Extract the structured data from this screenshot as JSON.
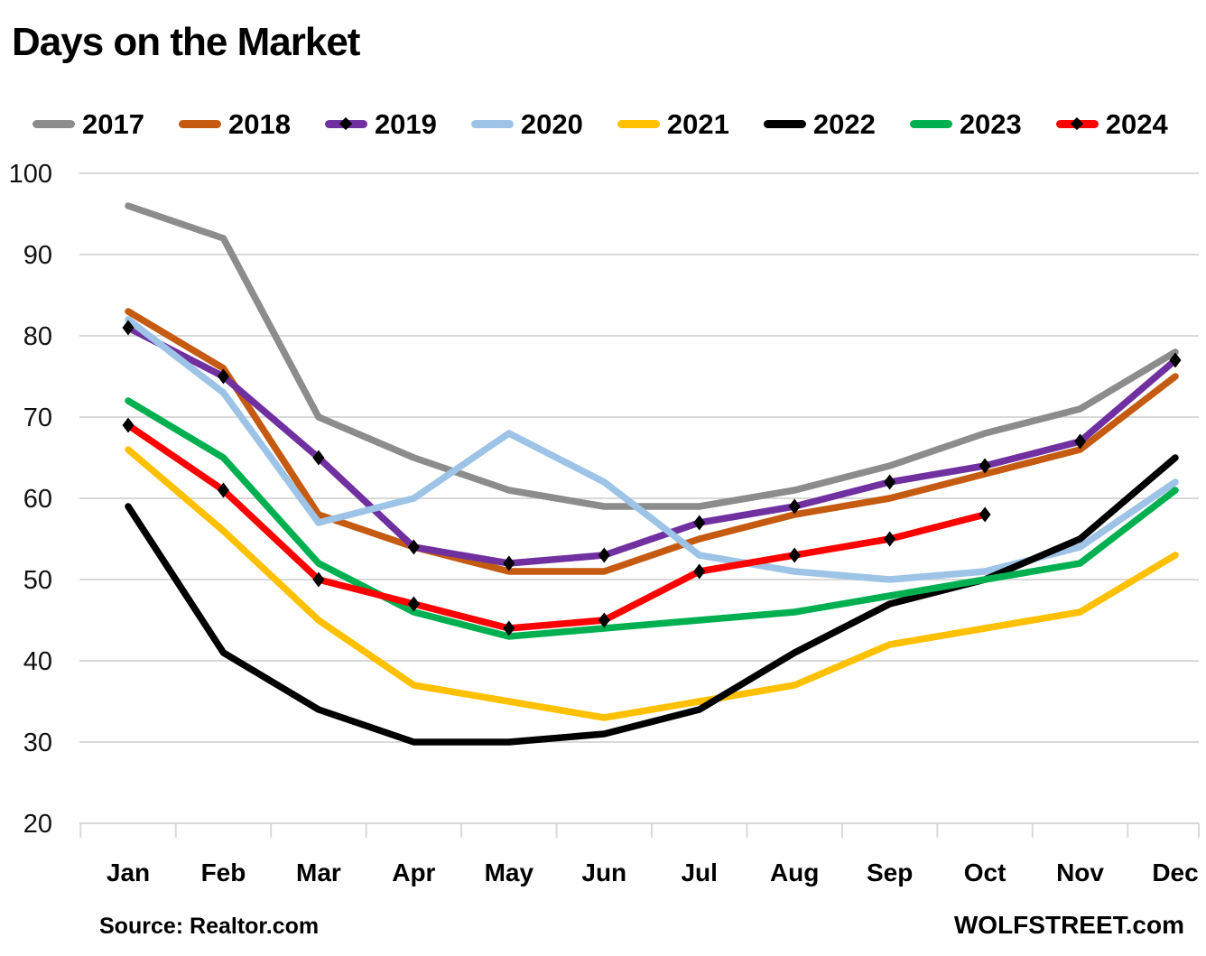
{
  "title": "Days on the Market",
  "footer": {
    "source": "Source: Realtor.com",
    "brand": "WOLFSTREET.com"
  },
  "chart_data": {
    "type": "line",
    "title": "Days on the Market",
    "categories": [
      "Jan",
      "Feb",
      "Mar",
      "Apr",
      "May",
      "Jun",
      "Jul",
      "Aug",
      "Sep",
      "Oct",
      "Nov",
      "Dec"
    ],
    "ylim": [
      20,
      100
    ],
    "ytick_step": 10,
    "grid": true,
    "legend_position": "top",
    "gridline_color": "#D9D9D9",
    "marker_color": "#000000",
    "axis_label_color": "#111111",
    "series": [
      {
        "name": "2017",
        "color": "#8C8C8C",
        "marker": false,
        "values": [
          96,
          92,
          70,
          65,
          61,
          59,
          59,
          61,
          64,
          68,
          71,
          78
        ]
      },
      {
        "name": "2018",
        "color": "#C55A11",
        "marker": false,
        "values": [
          83,
          76,
          58,
          54,
          51,
          51,
          55,
          58,
          60,
          63,
          66,
          75
        ]
      },
      {
        "name": "2019",
        "color": "#7030A0",
        "marker": true,
        "values": [
          81,
          75,
          65,
          54,
          52,
          53,
          57,
          59,
          62,
          64,
          67,
          77
        ]
      },
      {
        "name": "2020",
        "color": "#9DC3E6",
        "marker": false,
        "values": [
          82,
          73,
          57,
          60,
          68,
          62,
          53,
          51,
          50,
          51,
          54,
          62
        ]
      },
      {
        "name": "2021",
        "color": "#FFC000",
        "marker": false,
        "values": [
          66,
          56,
          45,
          37,
          35,
          33,
          35,
          37,
          42,
          44,
          46,
          53
        ]
      },
      {
        "name": "2022",
        "color": "#000000",
        "marker": false,
        "values": [
          59,
          41,
          34,
          30,
          30,
          31,
          34,
          41,
          47,
          50,
          55,
          65
        ]
      },
      {
        "name": "2023",
        "color": "#00B050",
        "marker": false,
        "values": [
          72,
          65,
          52,
          46,
          43,
          44,
          45,
          46,
          48,
          50,
          52,
          61
        ]
      },
      {
        "name": "2024",
        "color": "#FF0000",
        "marker": true,
        "values": [
          69,
          61,
          50,
          47,
          44,
          45,
          51,
          53,
          55,
          58,
          null,
          null
        ]
      }
    ]
  }
}
